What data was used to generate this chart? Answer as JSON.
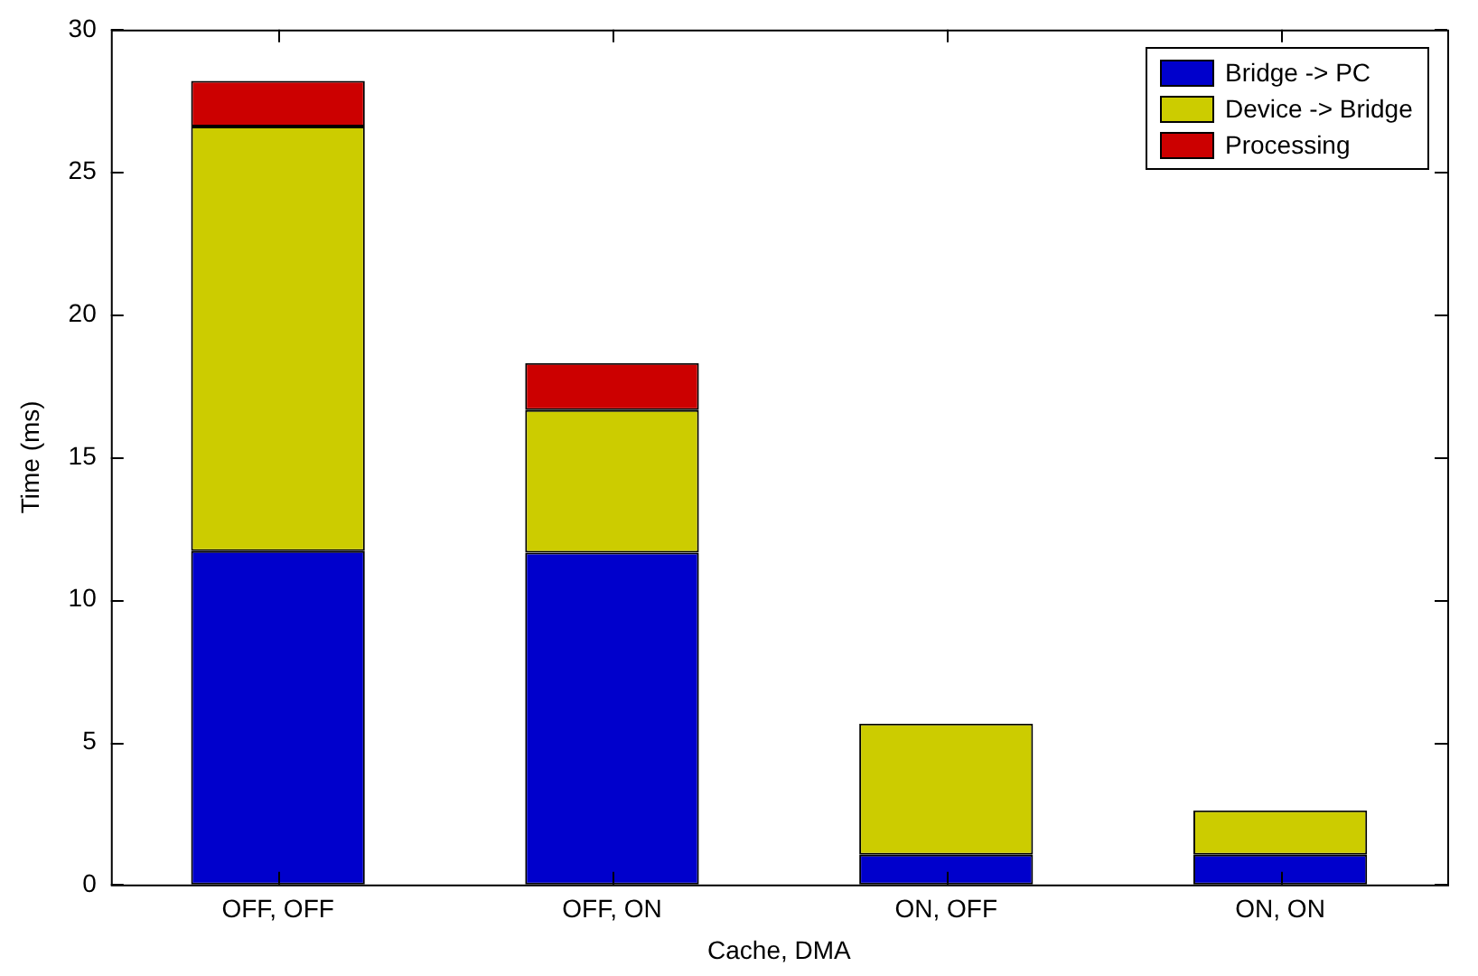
{
  "chart_data": {
    "type": "bar",
    "xlabel": "Cache, DMA",
    "ylabel": "Time (ms)",
    "categories": [
      "OFF, OFF",
      "OFF, ON",
      "ON, OFF",
      "ON, ON"
    ],
    "stacked": true,
    "ylim": [
      0,
      30
    ],
    "yticks": [
      0,
      5,
      10,
      15,
      20,
      25,
      30
    ],
    "grid": false,
    "legend": "top right",
    "series": [
      {
        "name": "Bridge -> PC",
        "color": "#0000cc",
        "values": [
          11.7,
          11.65,
          1.05,
          1.05
        ]
      },
      {
        "name": "Device -> Bridge",
        "color": "#cccc00",
        "values": [
          14.9,
          5.0,
          4.6,
          1.55
        ]
      },
      {
        "name": "Processing",
        "color": "#cc0000",
        "values": [
          1.6,
          1.65,
          null,
          null
        ]
      }
    ]
  }
}
